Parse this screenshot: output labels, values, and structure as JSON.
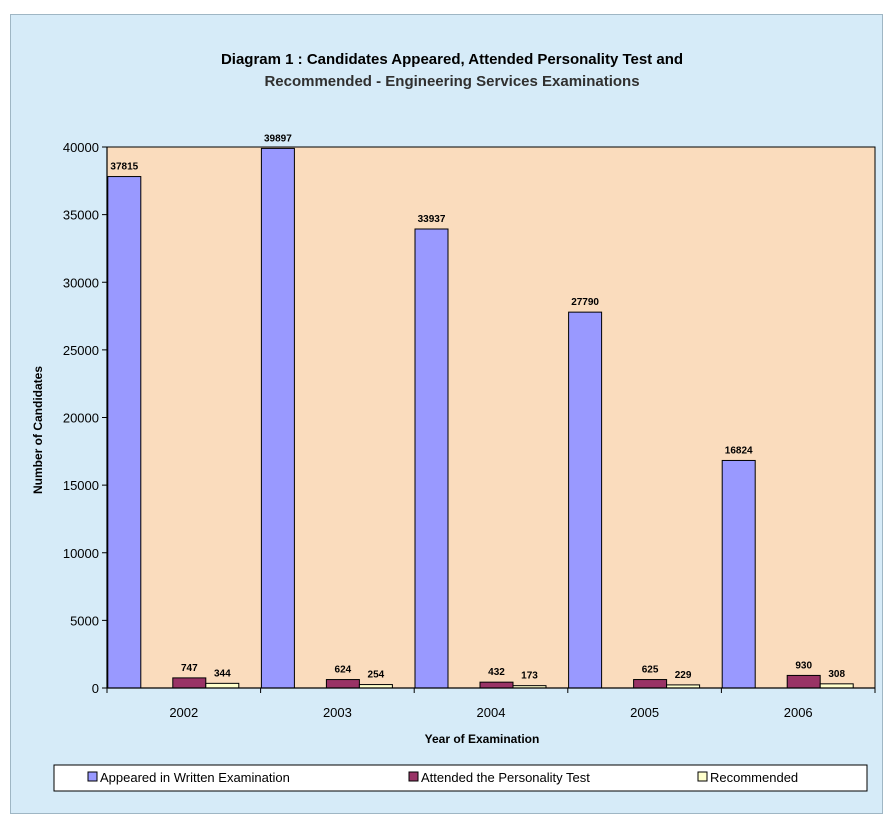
{
  "chart_data": {
    "type": "bar",
    "title": "Diagram 1 : Candidates Appeared, Attended Personality Test and",
    "subtitle": "Recommended - Engineering Services Examinations",
    "xlabel": "Year of Examination",
    "ylabel": "Number of Candidates",
    "categories": [
      "2002",
      "2003",
      "2004",
      "2005",
      "2006"
    ],
    "series": [
      {
        "name": "Appeared in Written Examination",
        "values": [
          37815,
          39897,
          33937,
          27790,
          16824
        ],
        "labels": [
          "37815",
          "39897",
          "33937",
          "27790",
          "16824"
        ],
        "color": "#9999ff"
      },
      {
        "name": "Attended the Personality Test",
        "values": [
          747,
          624,
          432,
          625,
          930
        ],
        "labels": [
          "747",
          "624",
          "432",
          "625",
          "930"
        ],
        "color": "#993366"
      },
      {
        "name": "Recommended",
        "values": [
          344,
          254,
          173,
          229,
          308
        ],
        "labels": [
          "344",
          "254",
          "173",
          "229",
          "308"
        ],
        "color": "#ffffcc"
      }
    ],
    "ylim": [
      0,
      40000
    ],
    "yticks": [
      "0",
      "5000",
      "10000",
      "15000",
      "20000",
      "25000",
      "30000",
      "35000",
      "40000"
    ],
    "plot_background": "#fadcbd",
    "frame_background": "#d6ebf8",
    "grid": false,
    "legend_position": "bottom"
  }
}
